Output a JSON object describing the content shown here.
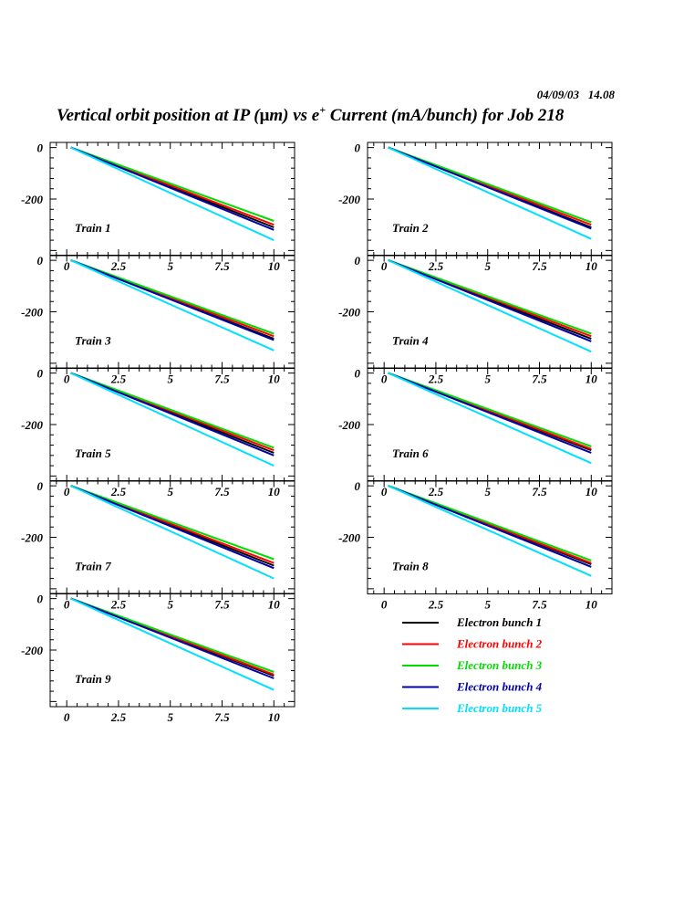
{
  "header": {
    "date": "04/09/03   14.08",
    "title_before": "Vertical orbit position at IP (",
    "title_mu": "μ",
    "title_mid": "m) vs e",
    "title_sup": "+",
    "title_after": " Current (mA/bunch) for Job 218"
  },
  "colors": {
    "Electron bunch 1": "#000000",
    "Electron bunch 2": "#ff0000",
    "Electron bunch 3": "#00dd00",
    "Electron bunch 4": "#0000aa",
    "Electron bunch 5": "#00e0ff"
  },
  "chart_data": {
    "type": "line",
    "xlabel": "",
    "ylabel": "",
    "xlim": [
      -0.8,
      11
    ],
    "ylim": [
      -420,
      20
    ],
    "xticks": [
      "0",
      "2.5",
      "5",
      "7.5",
      "10"
    ],
    "yticks": [
      "0",
      "-200"
    ],
    "legend": {
      "placement": "bottom-right",
      "entries": [
        "Electron bunch 1",
        "Electron bunch 2",
        "Electron bunch 3",
        "Electron bunch 4",
        "Electron bunch 5"
      ]
    },
    "panels": [
      {
        "label": "Train 1",
        "series": [
          {
            "name": "Electron bunch 1",
            "x": [
              0.2,
              10
            ],
            "y": [
              0,
              -310
            ]
          },
          {
            "name": "Electron bunch 2",
            "x": [
              0.2,
              10
            ],
            "y": [
              0,
              -300
            ]
          },
          {
            "name": "Electron bunch 3",
            "x": [
              0.2,
              10
            ],
            "y": [
              0,
              -285
            ]
          },
          {
            "name": "Electron bunch 4",
            "x": [
              0.2,
              10
            ],
            "y": [
              0,
              -320
            ]
          },
          {
            "name": "Electron bunch 5",
            "x": [
              0.2,
              10
            ],
            "y": [
              0,
              -360
            ]
          }
        ]
      },
      {
        "label": "Train 2",
        "series": [
          {
            "name": "Electron bunch 1",
            "x": [
              0.2,
              10
            ],
            "y": [
              0,
              -310
            ]
          },
          {
            "name": "Electron bunch 2",
            "x": [
              0.2,
              10
            ],
            "y": [
              0,
              -300
            ]
          },
          {
            "name": "Electron bunch 3",
            "x": [
              0.2,
              10
            ],
            "y": [
              0,
              -290
            ]
          },
          {
            "name": "Electron bunch 4",
            "x": [
              0.2,
              10
            ],
            "y": [
              0,
              -315
            ]
          },
          {
            "name": "Electron bunch 5",
            "x": [
              0.2,
              10
            ],
            "y": [
              0,
              -355
            ]
          }
        ]
      },
      {
        "label": "Train 3",
        "series": [
          {
            "name": "Electron bunch 1",
            "x": [
              0.2,
              10
            ],
            "y": [
              0,
              -305
            ]
          },
          {
            "name": "Electron bunch 2",
            "x": [
              0.2,
              10
            ],
            "y": [
              0,
              -295
            ]
          },
          {
            "name": "Electron bunch 3",
            "x": [
              0.2,
              10
            ],
            "y": [
              0,
              -285
            ]
          },
          {
            "name": "Electron bunch 4",
            "x": [
              0.2,
              10
            ],
            "y": [
              0,
              -310
            ]
          },
          {
            "name": "Electron bunch 5",
            "x": [
              0.2,
              10
            ],
            "y": [
              0,
              -350
            ]
          }
        ]
      },
      {
        "label": "Train 4",
        "series": [
          {
            "name": "Electron bunch 1",
            "x": [
              0.2,
              10
            ],
            "y": [
              0,
              -305
            ]
          },
          {
            "name": "Electron bunch 2",
            "x": [
              0.2,
              10
            ],
            "y": [
              0,
              -295
            ]
          },
          {
            "name": "Electron bunch 3",
            "x": [
              0.2,
              10
            ],
            "y": [
              0,
              -285
            ]
          },
          {
            "name": "Electron bunch 4",
            "x": [
              0.2,
              10
            ],
            "y": [
              0,
              -315
            ]
          },
          {
            "name": "Electron bunch 5",
            "x": [
              0.2,
              10
            ],
            "y": [
              0,
              -355
            ]
          }
        ]
      },
      {
        "label": "Train 5",
        "series": [
          {
            "name": "Electron bunch 1",
            "x": [
              0.2,
              10
            ],
            "y": [
              0,
              -310
            ]
          },
          {
            "name": "Electron bunch 2",
            "x": [
              0.2,
              10
            ],
            "y": [
              0,
              -300
            ]
          },
          {
            "name": "Electron bunch 3",
            "x": [
              0.2,
              10
            ],
            "y": [
              0,
              -290
            ]
          },
          {
            "name": "Electron bunch 4",
            "x": [
              0.2,
              10
            ],
            "y": [
              0,
              -320
            ]
          },
          {
            "name": "Electron bunch 5",
            "x": [
              0.2,
              10
            ],
            "y": [
              0,
              -360
            ]
          }
        ]
      },
      {
        "label": "Train 6",
        "series": [
          {
            "name": "Electron bunch 1",
            "x": [
              0.2,
              10
            ],
            "y": [
              0,
              -300
            ]
          },
          {
            "name": "Electron bunch 2",
            "x": [
              0.2,
              10
            ],
            "y": [
              0,
              -295
            ]
          },
          {
            "name": "Electron bunch 3",
            "x": [
              0.2,
              10
            ],
            "y": [
              0,
              -285
            ]
          },
          {
            "name": "Electron bunch 4",
            "x": [
              0.2,
              10
            ],
            "y": [
              0,
              -310
            ]
          },
          {
            "name": "Electron bunch 5",
            "x": [
              0.2,
              10
            ],
            "y": [
              0,
              -350
            ]
          }
        ]
      },
      {
        "label": "Train 7",
        "series": [
          {
            "name": "Electron bunch 1",
            "x": [
              0.2,
              10
            ],
            "y": [
              0,
              -310
            ]
          },
          {
            "name": "Electron bunch 2",
            "x": [
              0.2,
              10
            ],
            "y": [
              0,
              -300
            ]
          },
          {
            "name": "Electron bunch 3",
            "x": [
              0.2,
              10
            ],
            "y": [
              0,
              -285
            ]
          },
          {
            "name": "Electron bunch 4",
            "x": [
              0.2,
              10
            ],
            "y": [
              0,
              -320
            ]
          },
          {
            "name": "Electron bunch 5",
            "x": [
              0.2,
              10
            ],
            "y": [
              0,
              -360
            ]
          }
        ]
      },
      {
        "label": "Train 8",
        "series": [
          {
            "name": "Electron bunch 1",
            "x": [
              0.2,
              10
            ],
            "y": [
              0,
              -305
            ]
          },
          {
            "name": "Electron bunch 2",
            "x": [
              0.2,
              10
            ],
            "y": [
              0,
              -300
            ]
          },
          {
            "name": "Electron bunch 3",
            "x": [
              0.2,
              10
            ],
            "y": [
              0,
              -290
            ]
          },
          {
            "name": "Electron bunch 4",
            "x": [
              0.2,
              10
            ],
            "y": [
              0,
              -315
            ]
          },
          {
            "name": "Electron bunch 5",
            "x": [
              0.2,
              10
            ],
            "y": [
              0,
              -350
            ]
          }
        ]
      },
      {
        "label": "Train 9",
        "series": [
          {
            "name": "Electron bunch 1",
            "x": [
              0.2,
              10
            ],
            "y": [
              0,
              -300
            ]
          },
          {
            "name": "Electron bunch 2",
            "x": [
              0.2,
              10
            ],
            "y": [
              0,
              -295
            ]
          },
          {
            "name": "Electron bunch 3",
            "x": [
              0.2,
              10
            ],
            "y": [
              0,
              -285
            ]
          },
          {
            "name": "Electron bunch 4",
            "x": [
              0.2,
              10
            ],
            "y": [
              0,
              -310
            ]
          },
          {
            "name": "Electron bunch 5",
            "x": [
              0.2,
              10
            ],
            "y": [
              0,
              -355
            ]
          }
        ]
      }
    ]
  }
}
